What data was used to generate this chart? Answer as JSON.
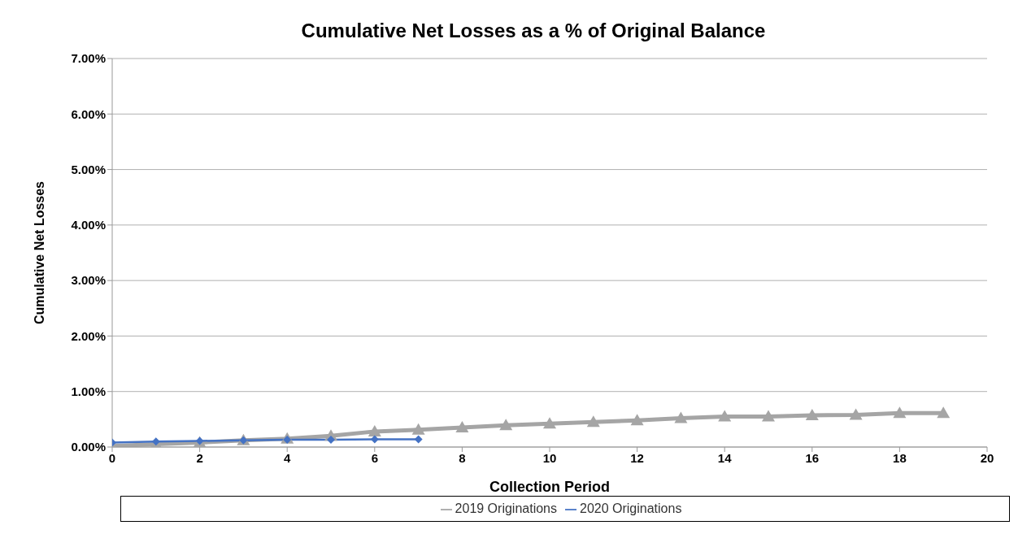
{
  "chart_data": {
    "type": "line",
    "title": "Cumulative Net Losses as a % of Original Balance",
    "xlabel": "Collection Period",
    "ylabel": "Cumulative Net Losses",
    "xlim": [
      0,
      20
    ],
    "xticks": [
      0,
      2,
      4,
      6,
      8,
      10,
      12,
      14,
      16,
      18,
      20
    ],
    "ylim": [
      0,
      7
    ],
    "yticks": [
      {
        "value": 0,
        "label": "0.00%"
      },
      {
        "value": 1,
        "label": "1.00%"
      },
      {
        "value": 2,
        "label": "2.00%"
      },
      {
        "value": 3,
        "label": "3.00%"
      },
      {
        "value": 4,
        "label": "4.00%"
      },
      {
        "value": 5,
        "label": "5.00%"
      },
      {
        "value": 6,
        "label": "6.00%"
      },
      {
        "value": 7,
        "label": "7.00%"
      }
    ],
    "grid": "y",
    "legend": "bottom",
    "series": [
      {
        "name": "2019 Originations",
        "color": "#a5a5a5",
        "marker": "triangle",
        "x": [
          0,
          1,
          2,
          3,
          4,
          5,
          6,
          7,
          8,
          9,
          10,
          11,
          12,
          13,
          14,
          15,
          16,
          17,
          18,
          19
        ],
        "values": [
          0.02,
          0.05,
          0.08,
          0.12,
          0.15,
          0.2,
          0.28,
          0.31,
          0.35,
          0.39,
          0.42,
          0.45,
          0.48,
          0.52,
          0.55,
          0.55,
          0.57,
          0.58,
          0.61,
          0.61
        ]
      },
      {
        "name": "2020 Originations",
        "color": "#4472c4",
        "marker": "diamond",
        "x": [
          0,
          1,
          2,
          3,
          4,
          5,
          6,
          7
        ],
        "values": [
          0.08,
          0.1,
          0.11,
          0.12,
          0.13,
          0.13,
          0.14,
          0.14
        ]
      }
    ]
  }
}
